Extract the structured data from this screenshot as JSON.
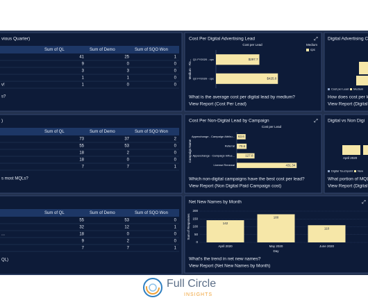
{
  "tables": [
    {
      "title": "vious Quarter)",
      "headers": [
        "Sum of QL",
        "Sum of Demo",
        "Sum of SQO Won"
      ],
      "rows": [
        {
          "label": null,
          "cells": [
            41,
            25,
            1
          ]
        },
        {
          "label": null,
          "cells": [
            9,
            0,
            0
          ]
        },
        {
          "label": null,
          "cells": [
            3,
            3,
            0
          ]
        },
        {
          "label": null,
          "cells": [
            1,
            1,
            0
          ]
        },
        {
          "label": "v!",
          "cells": [
            1,
            0,
            0
          ]
        }
      ],
      "question": "s?"
    },
    {
      "title": ")",
      "headers": [
        "Sum of QL",
        "Sum of Demo",
        "Sum of SQO Won"
      ],
      "rows": [
        {
          "label": null,
          "cells": [
            73,
            37,
            2
          ]
        },
        {
          "label": null,
          "cells": [
            55,
            53,
            0
          ]
        },
        {
          "label": null,
          "cells": [
            18,
            2,
            0
          ]
        },
        {
          "label": null,
          "cells": [
            18,
            0,
            0
          ]
        },
        {
          "label": null,
          "cells": [
            7,
            7,
            1
          ]
        }
      ],
      "question": "s most MQLs?"
    },
    {
      "title": null,
      "headers": [
        "Sum of QL",
        "Sum of Demo",
        "Sum of SQO Won"
      ],
      "rows": [
        {
          "label": null,
          "cells": [
            55,
            53,
            0
          ]
        },
        {
          "label": null,
          "cells": [
            32,
            12,
            1
          ]
        },
        {
          "label": "...",
          "cells": [
            18,
            0,
            0
          ]
        },
        {
          "label": null,
          "cells": [
            9,
            2,
            0
          ]
        },
        {
          "label": null,
          "cells": [
            7,
            7,
            1
          ]
        }
      ],
      "question": "QL)"
    }
  ],
  "charts": [
    {
      "type": "hbar",
      "title": "Cost Per Digital Advertising Lead",
      "x_label": "Cost per Lead",
      "y_label": "Medium - Fis...",
      "legend_title": "Medium",
      "legend_item": "cpc",
      "categories": [
        "Q1 FY2020 - cpc",
        "Q2 FY2020 - cpc"
      ],
      "values": [
        297.7,
        425.0
      ],
      "value_labels": [
        "$297.7",
        "$425.0"
      ],
      "xlim": [
        0,
        500
      ],
      "color": "#f6e7a8",
      "question": "What is the average cost per digital lead by medium?",
      "link": "View Report (Cost Per Lead)"
    },
    {
      "type": "hbar",
      "title": "Cost Per Non-Digital Lead by Campaign",
      "x_label": "Cost per Lead",
      "y_label": "Campaign Name",
      "categories": [
        "Appexchange - Campaign Attribu...",
        "Referral",
        "Appexchange - Campaign Influe...",
        "License Renewal"
      ],
      "values": [
        63.6,
        70.6,
        127.8,
        431.34
      ],
      "xlim": [
        0,
        500
      ],
      "color": "#f6e7a8",
      "question": "Which non-digital campaigns have the best cost per lead?",
      "link": "View Report (Non Digital Paid Campaign cost)"
    },
    {
      "type": "vbar",
      "title": "Net New Names by Month",
      "x_label": "Day",
      "y_label": "Sum of Responses",
      "categories": [
        "April 2020",
        "May 2020",
        "June 2020"
      ],
      "values": [
        142,
        180,
        110
      ],
      "ylim": [
        0,
        200
      ],
      "yticks": [
        0,
        50,
        100,
        150,
        200
      ],
      "color": "#f6e7a8",
      "question": "What's the trend in net new names?",
      "link": "View Report (Net New Names by Month)"
    }
  ],
  "partial_panels": [
    {
      "title": "Digital Advertising Co",
      "legend": [
        "Cost per Lead",
        "Medium"
      ],
      "question": "How does cost per le",
      "link": "View Report (Digital T"
    },
    {
      "title": "Digital vs Non Digi",
      "legend": [
        "Digital Touchpoint",
        "New"
      ],
      "axis": "April 2020",
      "question": "What portion of MQLs",
      "link": "View Report (Digital v"
    }
  ],
  "logo": {
    "name": "Full Circle",
    "sub": "INSIGHTS"
  }
}
